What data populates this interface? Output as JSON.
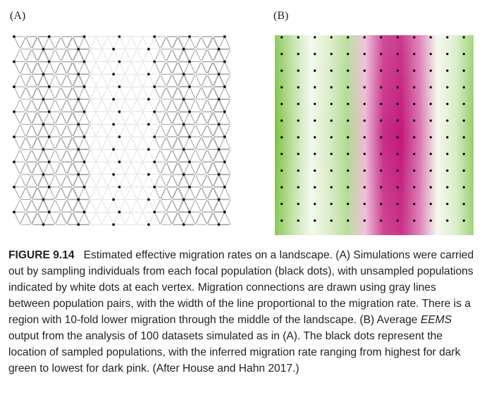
{
  "figure": {
    "panel_a_label": "(A)",
    "panel_b_label": "(B)",
    "caption_number": "FIGURE 9.14",
    "caption_text_1": "Estimated effective migration rates on a landscape. (A) Simulations were carried out by sampling individuals from each focal population (black dots), with unsampled populations indicated by white dots at each vertex. Migration connections are drawn using gray lines between population pairs, with the width of the line proportional to the migration rate. There is a region with 10-fold lower migration through the middle of the landscape. (B) Average ",
    "caption_emphasis": "EEMS",
    "caption_text_2": " output from the analysis of 100 datasets simulated as in (A). The black dots represent the location of sampled populations, with the inferred migration rate ranging from highest for dark green to lowest for dark pink. (After House and Hahn 2017.)"
  },
  "colors": {
    "high_migration": "#7cc142",
    "low_migration": "#c2187a",
    "neutral": "#ffffff",
    "edge_gray": "#9a9a9a",
    "dot": "#111111"
  },
  "chart_data": [
    {
      "type": "network",
      "grid_columns": 19,
      "grid_rows": 16,
      "low_migration_columns": [
        6,
        12
      ],
      "migration_ratio_low_to_high": 0.1,
      "sampled_populations": "black dots",
      "unsampled_populations": "white dots"
    },
    {
      "type": "heatmap",
      "grid_columns": 12,
      "grid_rows": 12,
      "column_profile": [
        1.0,
        0.5,
        0.1,
        0.3,
        0.6,
        -0.3,
        -0.9,
        -1.0,
        -0.6,
        0.1,
        0.3,
        0.8
      ]
    }
  ]
}
